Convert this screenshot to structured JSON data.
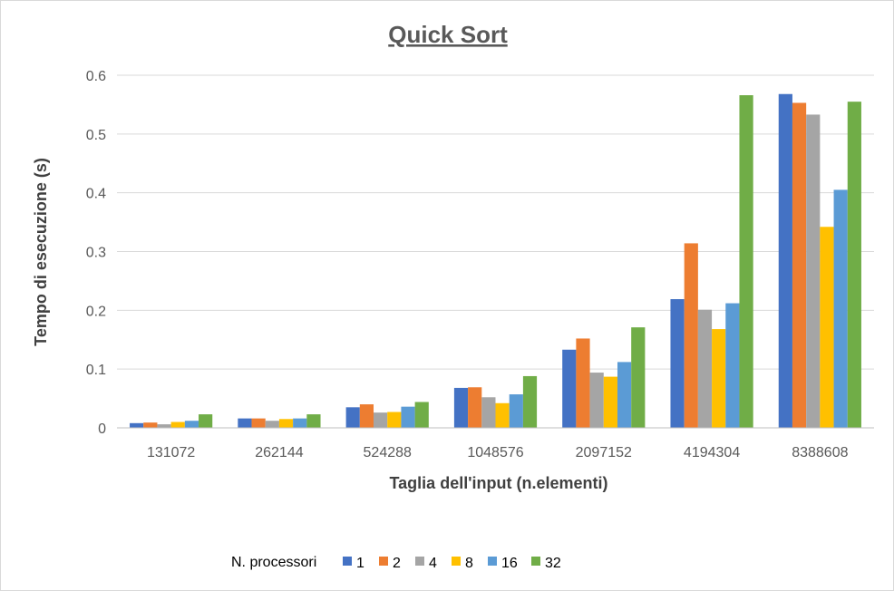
{
  "chart_data": {
    "type": "bar",
    "title": "Quick Sort",
    "xlabel": "Taglia dell'input (n.elementi)",
    "ylabel": "Tempo di esecuzione (s)",
    "ylim": [
      0,
      0.6
    ],
    "yticks": [
      "0",
      "0.1",
      "0.2",
      "0.3",
      "0.4",
      "0.5",
      "0.6"
    ],
    "grid": true,
    "legend_position": "bottom",
    "legend_title": "N. processori",
    "categories": [
      "131072",
      "262144",
      "524288",
      "1048576",
      "2097152",
      "4194304",
      "8388608"
    ],
    "series": [
      {
        "name": "1",
        "color": "#4472C4",
        "values": [
          0.008,
          0.016,
          0.035,
          0.068,
          0.133,
          0.219,
          0.568
        ]
      },
      {
        "name": "2",
        "color": "#ED7D31",
        "values": [
          0.009,
          0.016,
          0.04,
          0.069,
          0.152,
          0.314,
          0.553
        ]
      },
      {
        "name": "4",
        "color": "#A5A5A5",
        "values": [
          0.006,
          0.012,
          0.026,
          0.052,
          0.094,
          0.201,
          0.533
        ]
      },
      {
        "name": "8",
        "color": "#FFC000",
        "values": [
          0.01,
          0.015,
          0.027,
          0.042,
          0.087,
          0.168,
          0.342
        ]
      },
      {
        "name": "16",
        "color": "#5B9BD5",
        "values": [
          0.012,
          0.016,
          0.036,
          0.057,
          0.112,
          0.212,
          0.405
        ]
      },
      {
        "name": "32",
        "color": "#70AD47",
        "values": [
          0.023,
          0.023,
          0.044,
          0.088,
          0.171,
          0.566,
          0.555
        ]
      }
    ]
  }
}
